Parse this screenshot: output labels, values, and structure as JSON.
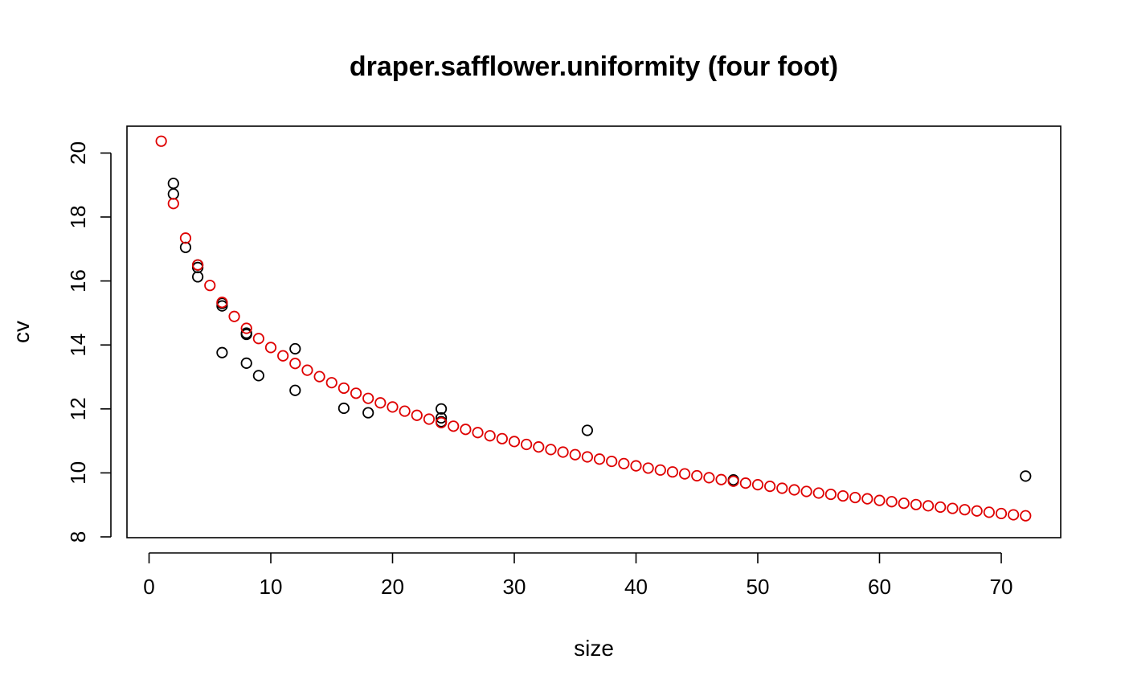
{
  "chart_data": {
    "type": "scatter",
    "title": "draper.safflower.uniformity (four foot)",
    "xlabel": "size",
    "ylabel": "cv",
    "xlim": [
      0,
      75
    ],
    "ylim": [
      8,
      20.8
    ],
    "xticks": [
      0,
      10,
      20,
      30,
      40,
      50,
      60,
      70
    ],
    "yticks": [
      8,
      10,
      12,
      14,
      16,
      18,
      20
    ],
    "grid": false,
    "legend": "none",
    "series": [
      {
        "color": "#000000",
        "marker": "open-circle",
        "points": [
          [
            2,
            19.05
          ],
          [
            2,
            18.72
          ],
          [
            3,
            17.05
          ],
          [
            4,
            16.5
          ],
          [
            4,
            16.42
          ],
          [
            4,
            16.13
          ],
          [
            6,
            15.3
          ],
          [
            6,
            15.22
          ],
          [
            6,
            13.76
          ],
          [
            8,
            14.37
          ],
          [
            8,
            14.33
          ],
          [
            8,
            13.43
          ],
          [
            9,
            13.04
          ],
          [
            12,
            13.88
          ],
          [
            12,
            12.58
          ],
          [
            16,
            12.02
          ],
          [
            18,
            11.88
          ],
          [
            24,
            12.0
          ],
          [
            24,
            11.72
          ],
          [
            24,
            11.6
          ],
          [
            36,
            11.33
          ],
          [
            48,
            9.78
          ],
          [
            72,
            9.9
          ]
        ]
      },
      {
        "color": "#DF0000",
        "marker": "open-circle",
        "x": [
          1,
          2,
          3,
          4,
          5,
          6,
          7,
          8,
          9,
          10,
          11,
          12,
          13,
          14,
          15,
          16,
          17,
          18,
          19,
          20,
          21,
          22,
          23,
          24,
          25,
          26,
          27,
          28,
          29,
          30,
          31,
          32,
          33,
          34,
          35,
          36,
          37,
          38,
          39,
          40,
          41,
          42,
          43,
          44,
          45,
          46,
          47,
          48,
          49,
          50,
          51,
          52,
          53,
          54,
          55,
          56,
          57,
          58,
          59,
          60,
          61,
          62,
          63,
          64,
          65,
          66,
          67,
          68,
          69,
          70,
          71,
          72
        ],
        "y": [
          20.37,
          18.42,
          17.34,
          16.5,
          15.86,
          15.33,
          14.89,
          14.52,
          14.2,
          13.92,
          13.66,
          13.42,
          13.21,
          13.01,
          12.82,
          12.65,
          12.49,
          12.33,
          12.19,
          12.06,
          11.93,
          11.8,
          11.68,
          11.57,
          11.46,
          11.36,
          11.26,
          11.16,
          11.07,
          10.98,
          10.89,
          10.81,
          10.73,
          10.65,
          10.57,
          10.5,
          10.43,
          10.36,
          10.29,
          10.22,
          10.15,
          10.09,
          10.03,
          9.97,
          9.91,
          9.85,
          9.79,
          9.74,
          9.68,
          9.63,
          9.58,
          9.52,
          9.47,
          9.42,
          9.37,
          9.33,
          9.28,
          9.23,
          9.19,
          9.14,
          9.1,
          9.05,
          9.01,
          8.97,
          8.93,
          8.89,
          8.85,
          8.81,
          8.77,
          8.73,
          8.69,
          8.66
        ]
      }
    ]
  }
}
